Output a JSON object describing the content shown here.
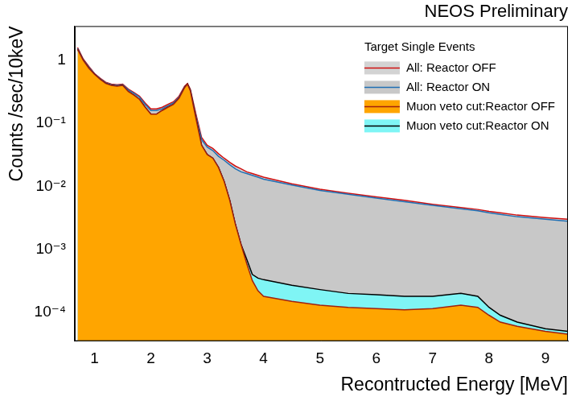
{
  "chart_data": {
    "type": "line",
    "title": "NEOS Preliminary",
    "x_label": "Recontructed Energy [MeV]",
    "y_label": "Counts /sec/10keV",
    "legend_title": "Target Single Events",
    "legend": "top-right",
    "log": "y",
    "grid": false,
    "xlim": [
      0.65,
      9.4
    ],
    "xticks": [
      1,
      2,
      3,
      4,
      5,
      6,
      7,
      8,
      9
    ],
    "ylim": [
      3.5e-05,
      3.5
    ],
    "yticks": [
      {
        "value": 0.0001,
        "label": "10⁻⁴"
      },
      {
        "value": 0.001,
        "label": "10⁻³"
      },
      {
        "value": 0.01,
        "label": "10⁻²"
      },
      {
        "value": 0.1,
        "label": "10⁻¹"
      },
      1
    ],
    "x": [
      0.7,
      0.8,
      0.9,
      1.0,
      1.1,
      1.2,
      1.3,
      1.4,
      1.5,
      1.6,
      1.7,
      1.8,
      1.9,
      2.0,
      2.1,
      2.2,
      2.3,
      2.4,
      2.5,
      2.6,
      2.65,
      2.7,
      2.8,
      2.9,
      3.0,
      3.1,
      3.2,
      3.3,
      3.4,
      3.5,
      3.6,
      3.7,
      3.8,
      3.9,
      4.0,
      4.5,
      5.0,
      5.5,
      6.0,
      6.5,
      7.0,
      7.5,
      7.8,
      8.0,
      8.2,
      8.5,
      9.0,
      9.4
    ],
    "series": [
      {
        "name": "All: Reactor OFF",
        "color": "#d3d3d3",
        "values": [
          1.6,
          1.05,
          0.8,
          0.62,
          0.52,
          0.45,
          0.42,
          0.41,
          0.42,
          0.35,
          0.31,
          0.27,
          0.21,
          0.17,
          0.17,
          0.18,
          0.2,
          0.22,
          0.27,
          0.39,
          0.43,
          0.35,
          0.14,
          0.06,
          0.045,
          0.04,
          0.033,
          0.028,
          0.024,
          0.021,
          0.019,
          0.017,
          0.016,
          0.015,
          0.014,
          0.011,
          0.009,
          0.0078,
          0.0068,
          0.006,
          0.0052,
          0.0046,
          0.0043,
          0.004,
          0.0038,
          0.0035,
          0.0032,
          0.003
        ]
      },
      {
        "name": "All: Reactor ON",
        "color": "#c8c8c8",
        "values": [
          1.55,
          1.02,
          0.78,
          0.61,
          0.51,
          0.44,
          0.41,
          0.4,
          0.41,
          0.34,
          0.3,
          0.26,
          0.2,
          0.16,
          0.16,
          0.17,
          0.19,
          0.21,
          0.26,
          0.38,
          0.42,
          0.34,
          0.13,
          0.055,
          0.042,
          0.037,
          0.03,
          0.026,
          0.022,
          0.019,
          0.017,
          0.016,
          0.015,
          0.014,
          0.013,
          0.0105,
          0.0086,
          0.0075,
          0.0065,
          0.0057,
          0.005,
          0.0044,
          0.0041,
          0.0038,
          0.0036,
          0.0033,
          0.003,
          0.0028
        ]
      },
      {
        "name": "Muon veto cut:Reactor OFF",
        "color": "#ffa500",
        "values": [
          1.5,
          1.0,
          0.75,
          0.6,
          0.5,
          0.43,
          0.4,
          0.39,
          0.4,
          0.32,
          0.28,
          0.24,
          0.18,
          0.14,
          0.14,
          0.16,
          0.18,
          0.2,
          0.25,
          0.37,
          0.42,
          0.33,
          0.12,
          0.045,
          0.032,
          0.028,
          0.02,
          0.012,
          0.006,
          0.0025,
          0.0012,
          0.0006,
          0.00032,
          0.00022,
          0.00018,
          0.00015,
          0.00013,
          0.00012,
          0.000115,
          0.00011,
          0.000115,
          0.00013,
          0.00012,
          9e-05,
          7e-05,
          6e-05,
          5e-05,
          4.5e-05
        ]
      },
      {
        "name": "Muon veto cut:Reactor ON",
        "color": "#7ff5f5",
        "values": [
          1.5,
          1.0,
          0.75,
          0.6,
          0.5,
          0.43,
          0.4,
          0.39,
          0.4,
          0.32,
          0.28,
          0.24,
          0.18,
          0.14,
          0.14,
          0.16,
          0.18,
          0.2,
          0.25,
          0.37,
          0.42,
          0.33,
          0.12,
          0.045,
          0.032,
          0.028,
          0.02,
          0.012,
          0.006,
          0.0025,
          0.0012,
          0.0007,
          0.0004,
          0.00035,
          0.00033,
          0.00027,
          0.00023,
          0.0002,
          0.00019,
          0.00018,
          0.00018,
          0.0002,
          0.00018,
          0.00012,
          9e-05,
          7e-05,
          5.5e-05,
          5e-05
        ]
      }
    ]
  }
}
